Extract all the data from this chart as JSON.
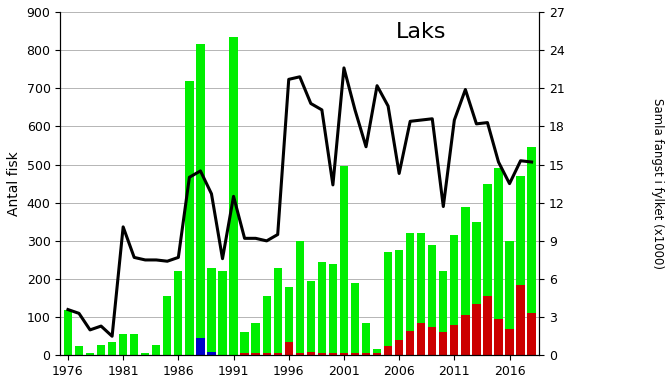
{
  "years": [
    1976,
    1977,
    1978,
    1979,
    1980,
    1981,
    1982,
    1983,
    1984,
    1985,
    1986,
    1987,
    1988,
    1989,
    1990,
    1991,
    1992,
    1993,
    1994,
    1995,
    1996,
    1997,
    1998,
    1999,
    2000,
    2001,
    2002,
    2003,
    2004,
    2005,
    2006,
    2007,
    2008,
    2009,
    2010,
    2011,
    2012,
    2013,
    2014,
    2015,
    2016,
    2017,
    2018
  ],
  "green_bars": [
    120,
    25,
    5,
    28,
    35,
    55,
    55,
    5,
    28,
    155,
    220,
    720,
    770,
    220,
    220,
    835,
    55,
    80,
    150,
    225,
    145,
    295,
    185,
    240,
    235,
    490,
    185,
    80,
    12,
    245,
    235,
    255,
    235,
    215,
    160,
    235,
    285,
    215,
    295,
    395,
    230,
    285,
    435
  ],
  "red_bars": [
    0,
    0,
    0,
    0,
    0,
    0,
    0,
    0,
    0,
    0,
    0,
    0,
    0,
    0,
    0,
    0,
    5,
    5,
    5,
    5,
    35,
    5,
    10,
    5,
    5,
    5,
    5,
    5,
    5,
    25,
    40,
    65,
    85,
    75,
    60,
    80,
    105,
    135,
    155,
    95,
    70,
    185,
    110
  ],
  "blue_bars": [
    0,
    0,
    0,
    0,
    0,
    0,
    0,
    0,
    0,
    0,
    0,
    0,
    45,
    10,
    0,
    0,
    0,
    0,
    0,
    0,
    0,
    0,
    0,
    0,
    0,
    0,
    0,
    0,
    0,
    0,
    0,
    0,
    0,
    0,
    0,
    0,
    0,
    0,
    0,
    0,
    0,
    0,
    0
  ],
  "line_values": [
    3.6,
    3.3,
    2.0,
    2.3,
    1.5,
    10.1,
    7.7,
    7.5,
    7.5,
    7.4,
    7.7,
    14.0,
    14.5,
    12.7,
    7.6,
    12.5,
    9.2,
    9.2,
    9.0,
    9.5,
    21.7,
    21.9,
    19.8,
    19.3,
    13.4,
    22.6,
    19.3,
    16.4,
    21.2,
    19.6,
    14.3,
    18.4,
    18.5,
    18.6,
    11.7,
    18.5,
    20.9,
    18.2,
    18.3,
    15.2,
    13.5,
    15.3,
    15.2
  ],
  "ylim_left": [
    0,
    900
  ],
  "ylim_right": [
    0,
    27
  ],
  "ylabel_left": "Antal fisk",
  "ylabel_right": "Samla fangst i fylket (x1000)",
  "title": "Laks",
  "xtick_labels": [
    "1976",
    "1981",
    "1986",
    "1991",
    "1996",
    "2001",
    "2006",
    "2011",
    "2016"
  ],
  "xtick_positions": [
    1976,
    1981,
    1986,
    1991,
    1996,
    2001,
    2006,
    2011,
    2016
  ],
  "yticks_left": [
    0,
    100,
    200,
    300,
    400,
    500,
    600,
    700,
    800,
    900
  ],
  "yticks_right": [
    0,
    3,
    6,
    9,
    12,
    15,
    18,
    21,
    24,
    27
  ],
  "green_color": "#00ee00",
  "red_color": "#cc0000",
  "blue_color": "#0000cc",
  "line_color": "#000000",
  "background_color": "#ffffff",
  "grid_color": "#aaaaaa",
  "bar_width": 0.75
}
